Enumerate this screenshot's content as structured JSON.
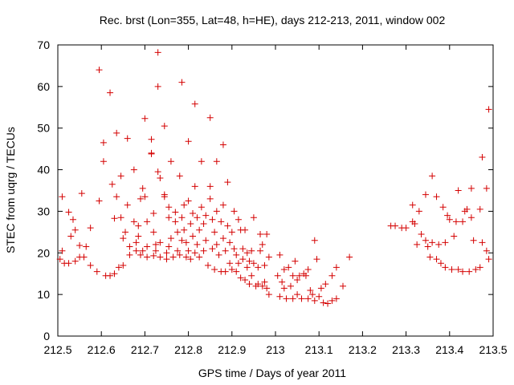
{
  "chart_data": {
    "type": "scatter",
    "title": "Rec. brst (Lon=355, Lat=48, h=HE), days 212-213, 2011, window 002",
    "xlabel": "GPS time / Days of year 2011",
    "ylabel": "STEC from uqrg / TECUs",
    "xlim": [
      212.5,
      213.5
    ],
    "ylim": [
      0,
      70
    ],
    "xticks": [
      "212.5",
      "212.6",
      "212.7",
      "212.8",
      "212.9",
      "213",
      "213.1",
      "213.2",
      "213.3",
      "213.4",
      "213.5"
    ],
    "yticks": [
      "0",
      "10",
      "20",
      "30",
      "40",
      "50",
      "60",
      "70"
    ],
    "grid": false,
    "marker": "+",
    "color": "#d40000",
    "series": [
      {
        "name": "STEC",
        "points": [
          [
            212.505,
            18.5
          ],
          [
            212.51,
            20.5
          ],
          [
            212.515,
            17.5
          ],
          [
            212.51,
            33.5
          ],
          [
            212.525,
            29.8
          ],
          [
            212.525,
            17.5
          ],
          [
            212.53,
            24.0
          ],
          [
            212.535,
            28.0
          ],
          [
            212.54,
            25.5
          ],
          [
            212.54,
            18.0
          ],
          [
            212.55,
            21.8
          ],
          [
            212.55,
            19.0
          ],
          [
            212.555,
            34.3
          ],
          [
            212.56,
            19.0
          ],
          [
            212.565,
            21.5
          ],
          [
            212.575,
            26.0
          ],
          [
            212.575,
            17.0
          ],
          [
            212.59,
            15.5
          ],
          [
            212.595,
            32.5
          ],
          [
            212.595,
            64.0
          ],
          [
            212.605,
            42.0
          ],
          [
            212.605,
            46.5
          ],
          [
            212.61,
            14.5
          ],
          [
            212.62,
            58.5
          ],
          [
            212.62,
            14.5
          ],
          [
            212.625,
            36.5
          ],
          [
            212.63,
            28.3
          ],
          [
            212.63,
            15.0
          ],
          [
            212.635,
            33.5
          ],
          [
            212.635,
            48.8
          ],
          [
            212.64,
            16.5
          ],
          [
            212.645,
            28.5
          ],
          [
            212.645,
            38.5
          ],
          [
            212.65,
            23.5
          ],
          [
            212.65,
            17.0
          ],
          [
            212.655,
            25.0
          ],
          [
            212.66,
            47.5
          ],
          [
            212.66,
            31.5
          ],
          [
            212.665,
            21.5
          ],
          [
            212.665,
            19.5
          ],
          [
            212.675,
            40.0
          ],
          [
            212.675,
            27.5
          ],
          [
            212.68,
            22.5
          ],
          [
            212.68,
            20.5
          ],
          [
            212.685,
            26.5
          ],
          [
            212.685,
            24.0
          ],
          [
            212.69,
            33.0
          ],
          [
            212.69,
            19.5
          ],
          [
            212.695,
            35.5
          ],
          [
            212.695,
            20.5
          ],
          [
            212.7,
            52.3
          ],
          [
            212.7,
            33.5
          ],
          [
            212.705,
            27.5
          ],
          [
            212.705,
            21.5
          ],
          [
            212.705,
            19.0
          ],
          [
            212.715,
            44.0
          ],
          [
            212.715,
            47.3
          ],
          [
            212.715,
            43.8
          ],
          [
            212.72,
            29.5
          ],
          [
            212.72,
            25.0
          ],
          [
            212.72,
            19.3
          ],
          [
            212.725,
            22.0
          ],
          [
            212.725,
            20.5
          ],
          [
            212.73,
            68.2
          ],
          [
            212.73,
            60.0
          ],
          [
            212.73,
            39.5
          ],
          [
            212.735,
            38.0
          ],
          [
            212.735,
            22.5
          ],
          [
            212.735,
            19.0
          ],
          [
            212.745,
            50.5
          ],
          [
            212.745,
            34.0
          ],
          [
            212.745,
            33.5
          ],
          [
            212.75,
            20.0
          ],
          [
            212.75,
            18.5
          ],
          [
            212.755,
            31.0
          ],
          [
            212.755,
            28.5
          ],
          [
            212.755,
            21.5
          ],
          [
            212.76,
            42.0
          ],
          [
            212.76,
            23.5
          ],
          [
            212.765,
            19.0
          ],
          [
            212.77,
            29.8
          ],
          [
            212.77,
            27.5
          ],
          [
            212.775,
            25.0
          ],
          [
            212.775,
            20.5
          ],
          [
            212.78,
            38.5
          ],
          [
            212.78,
            19.5
          ],
          [
            212.785,
            28.5
          ],
          [
            212.785,
            61.0
          ],
          [
            212.785,
            23.0
          ],
          [
            212.79,
            31.5
          ],
          [
            212.79,
            25.5
          ],
          [
            212.795,
            22.5
          ],
          [
            212.795,
            19.0
          ],
          [
            212.8,
            46.8
          ],
          [
            212.8,
            32.5
          ],
          [
            212.8,
            20.5
          ],
          [
            212.805,
            27.0
          ],
          [
            212.805,
            18.5
          ],
          [
            212.81,
            29.5
          ],
          [
            212.81,
            24.0
          ],
          [
            212.815,
            55.8
          ],
          [
            212.815,
            36.0
          ],
          [
            212.815,
            20.0
          ],
          [
            212.82,
            28.5
          ],
          [
            212.82,
            22.0
          ],
          [
            212.825,
            25.5
          ],
          [
            212.825,
            19.0
          ],
          [
            212.83,
            42.0
          ],
          [
            212.83,
            31.0
          ],
          [
            212.835,
            27.0
          ],
          [
            212.835,
            20.5
          ],
          [
            212.84,
            29.0
          ],
          [
            212.84,
            23.0
          ],
          [
            212.845,
            17.0
          ],
          [
            212.85,
            52.5
          ],
          [
            212.85,
            36.0
          ],
          [
            212.85,
            33.0
          ],
          [
            212.855,
            28.0
          ],
          [
            212.855,
            21.0
          ],
          [
            212.86,
            25.0
          ],
          [
            212.86,
            16.0
          ],
          [
            212.865,
            42.0
          ],
          [
            212.865,
            30.0
          ],
          [
            212.865,
            22.0
          ],
          [
            212.87,
            19.5
          ],
          [
            212.875,
            27.5
          ],
          [
            212.875,
            15.5
          ],
          [
            212.88,
            46.0
          ],
          [
            212.88,
            31.5
          ],
          [
            212.88,
            23.5
          ],
          [
            212.885,
            20.5
          ],
          [
            212.885,
            15.5
          ],
          [
            212.89,
            37.0
          ],
          [
            212.89,
            26.5
          ],
          [
            212.895,
            22.5
          ],
          [
            212.895,
            17.5
          ],
          [
            212.9,
            25.0
          ],
          [
            212.9,
            16.0
          ],
          [
            212.905,
            30.0
          ],
          [
            212.905,
            21.0
          ],
          [
            212.91,
            19.5
          ],
          [
            212.91,
            15.5
          ],
          [
            212.915,
            28.0
          ],
          [
            212.915,
            17.5
          ],
          [
            212.92,
            25.5
          ],
          [
            212.92,
            14.0
          ],
          [
            212.925,
            21.0
          ],
          [
            212.925,
            18.5
          ],
          [
            212.93,
            25.5
          ],
          [
            212.93,
            13.5
          ],
          [
            212.935,
            20.0
          ],
          [
            212.935,
            16.5
          ],
          [
            212.94,
            18.0
          ],
          [
            212.94,
            12.5
          ],
          [
            212.945,
            20.5
          ],
          [
            212.945,
            14.5
          ],
          [
            212.95,
            28.5
          ],
          [
            212.95,
            17.5
          ],
          [
            212.955,
            12.0
          ],
          [
            212.96,
            16.5
          ],
          [
            212.96,
            12.5
          ],
          [
            212.965,
            24.5
          ],
          [
            212.965,
            20.5
          ],
          [
            212.97,
            22.0
          ],
          [
            212.97,
            12.0
          ],
          [
            212.975,
            17.0
          ],
          [
            212.975,
            13.0
          ],
          [
            212.98,
            24.5
          ],
          [
            212.98,
            11.5
          ],
          [
            212.985,
            19.0
          ],
          [
            212.985,
            10.0
          ],
          [
            213.005,
            14.5
          ],
          [
            213.01,
            19.5
          ],
          [
            213.01,
            9.5
          ],
          [
            213.015,
            13.0
          ],
          [
            213.02,
            16.0
          ],
          [
            213.02,
            11.5
          ],
          [
            213.025,
            9.0
          ],
          [
            213.03,
            16.5
          ],
          [
            213.035,
            12.0
          ],
          [
            213.04,
            14.5
          ],
          [
            213.04,
            9.0
          ],
          [
            213.045,
            18.0
          ],
          [
            213.05,
            13.5
          ],
          [
            213.05,
            10.0
          ],
          [
            213.055,
            14.5
          ],
          [
            213.06,
            9.0
          ],
          [
            213.065,
            15.0
          ],
          [
            213.07,
            14.5
          ],
          [
            213.075,
            16.0
          ],
          [
            213.075,
            9.0
          ],
          [
            213.08,
            11.0
          ],
          [
            213.085,
            10.0
          ],
          [
            213.09,
            23.0
          ],
          [
            213.09,
            8.5
          ],
          [
            213.095,
            18.5
          ],
          [
            213.1,
            9.5
          ],
          [
            213.105,
            11.5
          ],
          [
            213.11,
            8.0
          ],
          [
            213.115,
            12.5
          ],
          [
            213.12,
            7.8
          ],
          [
            213.13,
            8.5
          ],
          [
            213.13,
            14.5
          ],
          [
            213.14,
            16.5
          ],
          [
            213.14,
            9.0
          ],
          [
            213.155,
            12.0
          ],
          [
            213.17,
            19.0
          ],
          [
            213.265,
            26.5
          ],
          [
            213.275,
            26.5
          ],
          [
            213.29,
            26.0
          ],
          [
            213.3,
            26.0
          ],
          [
            213.315,
            31.5
          ],
          [
            213.315,
            27.5
          ],
          [
            213.32,
            27.0
          ],
          [
            213.325,
            22.0
          ],
          [
            213.33,
            30.0
          ],
          [
            213.335,
            24.5
          ],
          [
            213.345,
            34.0
          ],
          [
            213.345,
            23.0
          ],
          [
            213.35,
            21.5
          ],
          [
            213.355,
            19.0
          ],
          [
            213.36,
            38.5
          ],
          [
            213.36,
            22.5
          ],
          [
            213.37,
            33.5
          ],
          [
            213.37,
            18.5
          ],
          [
            213.375,
            22.0
          ],
          [
            213.38,
            17.5
          ],
          [
            213.385,
            31.0
          ],
          [
            213.39,
            22.5
          ],
          [
            213.39,
            16.5
          ],
          [
            213.395,
            29.0
          ],
          [
            213.4,
            28.0
          ],
          [
            213.405,
            16.0
          ],
          [
            213.41,
            24.0
          ],
          [
            213.415,
            27.5
          ],
          [
            213.42,
            35.0
          ],
          [
            213.42,
            16.0
          ],
          [
            213.43,
            27.5
          ],
          [
            213.43,
            15.5
          ],
          [
            213.435,
            30.0
          ],
          [
            213.44,
            30.5
          ],
          [
            213.445,
            15.5
          ],
          [
            213.45,
            35.5
          ],
          [
            213.45,
            28.5
          ],
          [
            213.455,
            23.0
          ],
          [
            213.46,
            16.0
          ],
          [
            213.47,
            30.5
          ],
          [
            213.47,
            16.5
          ],
          [
            213.475,
            43.0
          ],
          [
            213.475,
            22.5
          ],
          [
            213.485,
            35.5
          ],
          [
            213.485,
            20.5
          ],
          [
            213.49,
            54.5
          ],
          [
            213.49,
            18.5
          ]
        ]
      }
    ]
  }
}
